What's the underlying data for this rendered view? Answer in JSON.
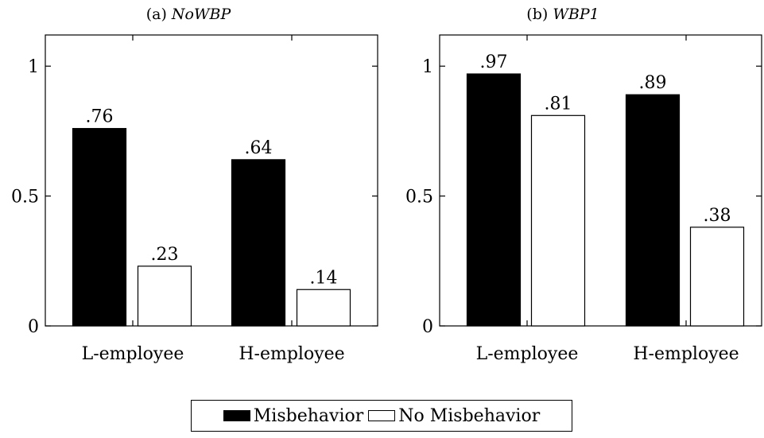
{
  "colors": {
    "misbehavior": "#000000",
    "no_misbehavior": "#ffffff",
    "axis": "#000000"
  },
  "legend": {
    "misbehavior": "Misbehavior",
    "no_misbehavior": "No Misbehavior"
  },
  "chart_data": [
    {
      "type": "bar",
      "title": "(a) NoWBP",
      "title_prefix": "(a)",
      "title_text": "NoWBP",
      "categories": [
        "L-employee",
        "H-employee"
      ],
      "series": [
        {
          "name": "Misbehavior",
          "values": [
            0.76,
            0.64
          ],
          "labels": [
            ".76",
            ".64"
          ]
        },
        {
          "name": "No Misbehavior",
          "values": [
            0.23,
            0.14
          ],
          "labels": [
            ".23",
            ".14"
          ]
        }
      ],
      "ylim": [
        0,
        1.12
      ],
      "yticks": [
        0,
        0.5,
        1
      ],
      "ytick_labels": [
        "0",
        "0.5",
        "1"
      ],
      "xlabel": "",
      "ylabel": "",
      "grid": false,
      "legend_position": "bottom"
    },
    {
      "type": "bar",
      "title": "(b) WBP1",
      "title_prefix": "(b)",
      "title_text": "WBP1",
      "categories": [
        "L-employee",
        "H-employee"
      ],
      "series": [
        {
          "name": "Misbehavior",
          "values": [
            0.97,
            0.89
          ],
          "labels": [
            ".97",
            ".89"
          ]
        },
        {
          "name": "No Misbehavior",
          "values": [
            0.81,
            0.38
          ],
          "labels": [
            ".81",
            ".38"
          ]
        }
      ],
      "ylim": [
        0,
        1.12
      ],
      "yticks": [
        0,
        0.5,
        1
      ],
      "ytick_labels": [
        "0",
        "0.5",
        "1"
      ],
      "xlabel": "",
      "ylabel": "",
      "grid": false,
      "legend_position": "bottom"
    }
  ]
}
